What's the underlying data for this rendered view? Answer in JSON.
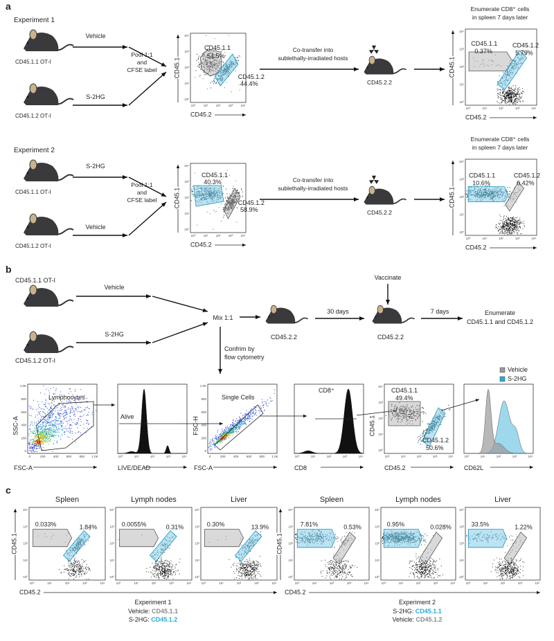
{
  "panel_a": {
    "label": "a",
    "y_axis": "CD45.1",
    "x_axis": "CD45.2",
    "experiments": [
      {
        "title": "Experiment 1",
        "mouse_1": "CD45.1.1 OT-I",
        "mouse_2": "CD45.1.2 OT-I",
        "treatment_1": "Vehicle",
        "treatment_2": "S-2HG",
        "pool": [
          "Pool 1:1",
          "and",
          "CFSE label"
        ],
        "input_gates": [
          {
            "name": "CD45.1.1",
            "percent": "54.5%"
          },
          {
            "name": "CD45.1.2",
            "percent": "44.4%"
          }
        ],
        "transfer": [
          "Co-transfer into",
          "sublethally-irradiated hosts"
        ],
        "host": "CD45.2.2",
        "readout": [
          "Enumerate CD8⁺ cells",
          "in spleen 7 days later"
        ],
        "output_gates": [
          {
            "name": "CD45.1.1",
            "percent": "0.37%"
          },
          {
            "name": "CD45.1.2",
            "percent": "5.79%"
          }
        ]
      },
      {
        "title": "Experiment 2",
        "mouse_1": "CD45.1.1 OT-I",
        "mouse_2": "CD45.1.2 OT-I",
        "treatment_1": "S-2HG",
        "treatment_2": "Vehicle",
        "pool": [
          "Pool 1:1",
          "and",
          "CFSE label"
        ],
        "input_gates": [
          {
            "name": "CD45.1.1",
            "percent": "40.3%"
          },
          {
            "name": "CD45.1.2",
            "percent": "58.9%"
          }
        ],
        "transfer": [
          "Co-transfer into",
          "sublethally-irradiated hosts"
        ],
        "host": "CD45.2.2",
        "readout": [
          "Enumerate CD8⁺ cells",
          "in spleen 7 days later"
        ],
        "output_gates": [
          {
            "name": "CD45.1.1",
            "percent": "10.6%"
          },
          {
            "name": "CD45.1.2",
            "percent": "0.42%"
          }
        ]
      }
    ]
  },
  "panel_b": {
    "label": "b",
    "mouse_1": "CD45.1.1 OT-I",
    "mouse_2": "CD45.1.2 OT-I",
    "treatment_1": "Vehicle",
    "treatment_2": "S-2HG",
    "mix": "Mix 1:1",
    "host_1": "CD45.2.2",
    "interval_1": "30 days",
    "vaccinate": "Vaccinate",
    "host_2": "CD45.2.2",
    "interval_2": "7 days",
    "readout": [
      "Enumerate",
      "CD45.1.1 and CD45.1.2"
    ],
    "confirm": [
      "Confrim by",
      "flow cytometry"
    ],
    "legend": [
      {
        "name": "Vehicle",
        "color": "#9a9a9a"
      },
      {
        "name": "S-2HG",
        "color": "#29a9d6"
      }
    ],
    "linear_ticks": [
      "0",
      "200",
      "400",
      "600",
      "800",
      "1.0K"
    ],
    "plots": [
      {
        "y_axis": "SSC-A",
        "x_axis": "FSC-A",
        "gate": "Lymphocytes"
      },
      {
        "x_axis": "LIVE/DEAD",
        "gate": "Alive"
      },
      {
        "y_axis": "FSC-H",
        "x_axis": "FSC-A",
        "gate": "Single Cells"
      },
      {
        "x_axis": "CD8",
        "gate": "CD8⁺"
      },
      {
        "y_axis": "CD45.1",
        "x_axis": "CD45.2",
        "gates": [
          {
            "name": "CD45.1.1",
            "percent": "49.4%"
          },
          {
            "name": "CD45.1.2",
            "percent": "50.6%"
          }
        ]
      },
      {
        "x_axis": "CD62L"
      }
    ]
  },
  "panel_c": {
    "label": "c",
    "y_axis": "CD45.1",
    "x_axis": "CD45.2",
    "groups": [
      {
        "tissues": [
          {
            "name": "Spleen",
            "gate_1": "0.033%",
            "gate_2": "1.84%"
          },
          {
            "name": "Lymph nodes",
            "gate_1": "0.0055%",
            "gate_2": "0.31%"
          },
          {
            "name": "Liver",
            "gate_1": "0.30%",
            "gate_2": "13.9%"
          }
        ],
        "caption": {
          "title": "Experiment 1",
          "line_1": {
            "label": "Vehicle:",
            "population": "CD45.1.1",
            "color": "#8a8a8a"
          },
          "line_2": {
            "label": "S-2HG:",
            "population": "CD45.1.2",
            "color": "#29a9d6"
          }
        }
      },
      {
        "tissues": [
          {
            "name": "Spleen",
            "gate_1": "7.81%",
            "gate_2": "0.53%"
          },
          {
            "name": "Lymph nodes",
            "gate_1": "0.95%",
            "gate_2": "0.028%"
          },
          {
            "name": "Liver",
            "gate_1": "33.5%",
            "gate_2": "1.22%"
          }
        ],
        "caption": {
          "title": "Experiment 2",
          "line_1": {
            "label": "S-2HG:",
            "population": "CD45.1.1",
            "color": "#29a9d6"
          },
          "line_2": {
            "label": "Vehicle:",
            "population": "CD45.1.2",
            "color": "#8a8a8a"
          }
        }
      }
    ]
  },
  "log_ticks": [
    "10⁰",
    "10¹",
    "10²",
    "10³",
    "10⁴"
  ]
}
